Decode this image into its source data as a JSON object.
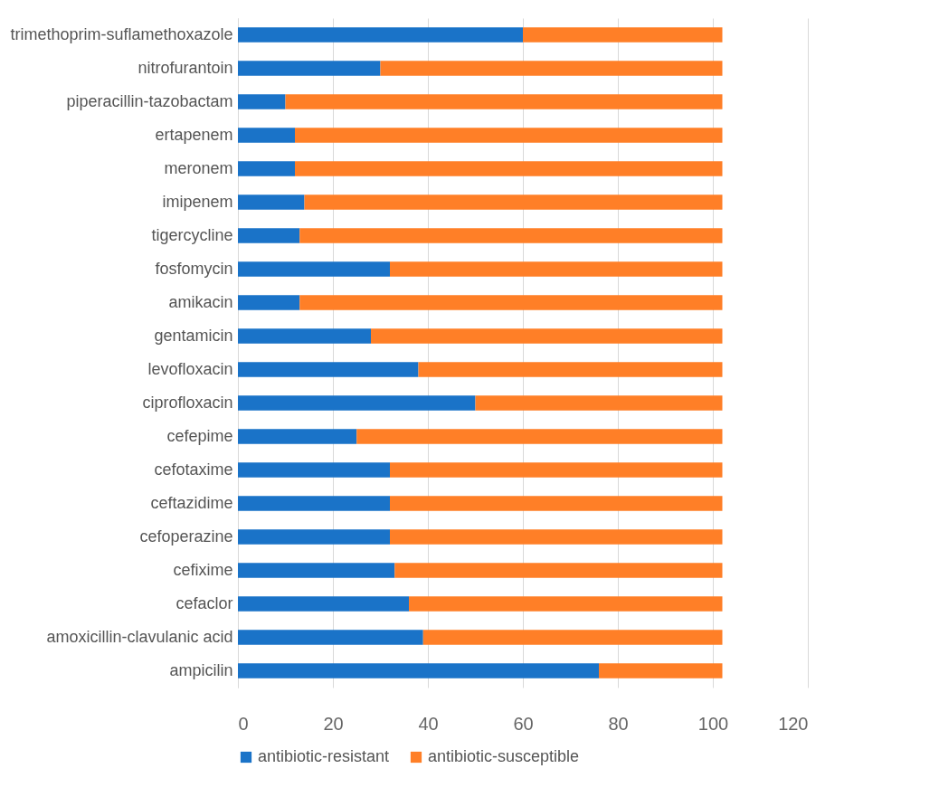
{
  "chart_data": {
    "type": "bar",
    "orientation": "horizontal",
    "stacked": true,
    "categories": [
      "trimethoprim-suflamethoxazole",
      "nitrofurantoin",
      "piperacillin-tazobactam",
      "ertapenem",
      "meronem",
      "imipenem",
      "tigercycline",
      "fosfomycin",
      "amikacin",
      "gentamicin",
      "levofloxacin",
      "ciprofloxacin",
      "cefepime",
      "cefotaxime",
      "ceftazidime",
      "cefoperazine",
      "cefixime",
      "cefaclor",
      "amoxicillin-clavulanic acid",
      "ampicilin"
    ],
    "series": [
      {
        "name": "antibiotic-resistant",
        "color": "#1a73c8",
        "values": [
          60,
          30,
          10,
          12,
          12,
          14,
          13,
          32,
          13,
          28,
          38,
          50,
          25,
          32,
          32,
          32,
          33,
          36,
          39,
          76
        ]
      },
      {
        "name": "antibiotic-susceptible",
        "color": "#ff7f27",
        "values": [
          42,
          72,
          92,
          90,
          90,
          88,
          89,
          70,
          89,
          74,
          64,
          52,
          77,
          70,
          70,
          70,
          69,
          66,
          63,
          26
        ]
      }
    ],
    "xlim": [
      0,
      120
    ],
    "xticks": [
      0,
      20,
      40,
      60,
      80,
      100,
      120
    ],
    "grid": "x",
    "legend": "bottom"
  }
}
